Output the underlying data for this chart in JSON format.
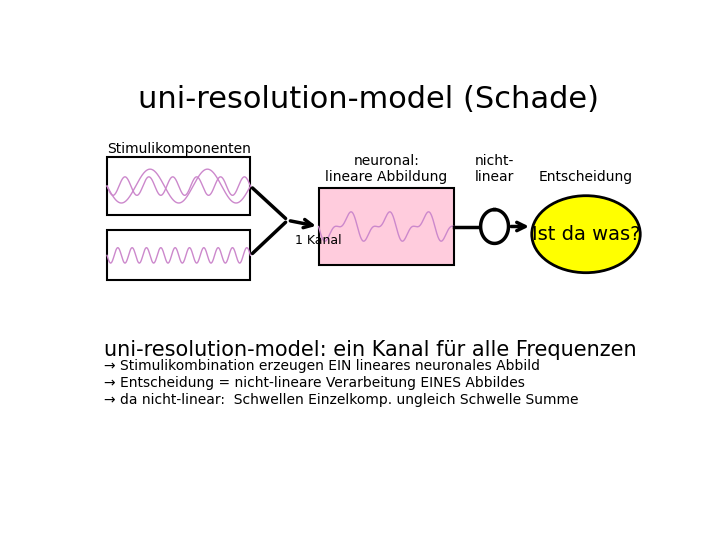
{
  "title": "uni-resolution-model (Schade)",
  "background_color": "#ffffff",
  "stimuli_label": "Stimulikomponenten",
  "neuronal_label": "neuronal:\nlineare Abbildung",
  "nicht_linear_label": "nicht-\nlinear",
  "entscheidung_label": "Entscheidung",
  "kanal_label": "1 Kanal",
  "decision_text": "Ist da was?",
  "subtitle": "uni-resolution-model: ein Kanal für alle Frequenzen",
  "bullet1": "→ Stimulikombination erzeugen EIN lineares neuronales Abbild",
  "bullet2": "→ Entscheidung = nicht-lineare Verarbeitung EINES Abbildes",
  "bullet3": "→ da nicht-linear:  Schwellen Einzelkomp. ungleich Schwelle Summe",
  "wave_color": "#cc88cc",
  "box_fill_color": "#ffccdd",
  "ellipse_fill_color": "#ffff00",
  "arrow_color": "#000000"
}
